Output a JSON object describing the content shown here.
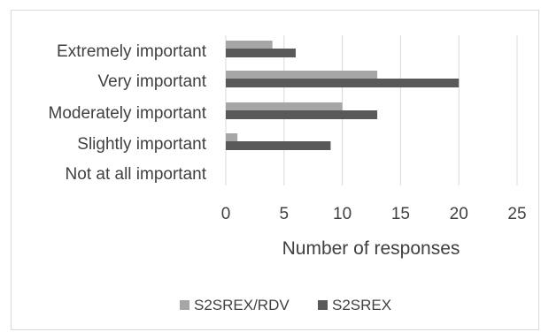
{
  "chart_data": {
    "type": "bar",
    "orientation": "horizontal",
    "categories": [
      "Extremely important",
      "Very important",
      "Moderately important",
      "Slightly important",
      "Not at all important"
    ],
    "series": [
      {
        "name": "S2SREX/RDV",
        "color": "#a6a6a6",
        "values": [
          4,
          13,
          10,
          1,
          0
        ]
      },
      {
        "name": "S2SREX",
        "color": "#595959",
        "values": [
          6,
          20,
          13,
          9,
          0
        ]
      }
    ],
    "xlabel": "Number of responses",
    "xlim": [
      0,
      25
    ],
    "xticks": [
      "0",
      "5",
      "10",
      "15",
      "20",
      "25"
    ],
    "grid": true,
    "legend_position": "bottom"
  }
}
